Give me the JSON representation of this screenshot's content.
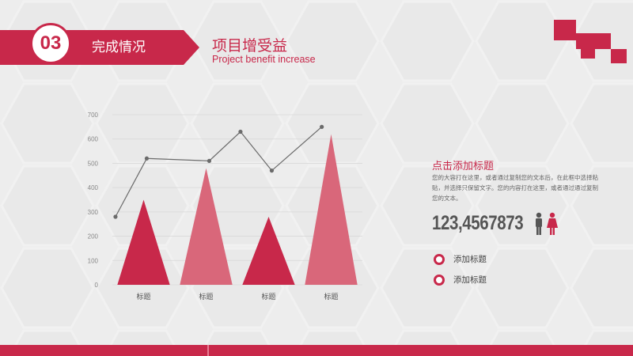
{
  "header": {
    "section_number": "03",
    "section_label": "完成情况",
    "title": "项目增受益",
    "subtitle": "Project benefit increase"
  },
  "colors": {
    "accent": "#c8284a",
    "accent_light": "#d9677a",
    "line": "#6b6b6b"
  },
  "chart_data": {
    "type": "bar",
    "bar_shape": "triangle",
    "categories": [
      "标题",
      "标题",
      "标题",
      "标题"
    ],
    "ylim": [
      0,
      700
    ],
    "yticks": [
      0,
      100,
      200,
      300,
      400,
      500,
      600,
      700
    ],
    "grid": true,
    "series": [
      {
        "values": [
          350,
          480,
          280,
          620
        ],
        "colors": [
          "#c8284a",
          "#d9677a",
          "#c8284a",
          "#d9677a"
        ]
      }
    ],
    "line": {
      "x_positions": [
        0,
        0.5,
        1.5,
        2.0,
        2.5,
        3.3
      ],
      "values": [
        280,
        520,
        510,
        630,
        470,
        650
      ]
    }
  },
  "panel": {
    "title": "点击添加标题",
    "body": "您的大容打在这里，或者通过复制您的文本后，在此框中选择粘贴，并选择只保留文字。您的内容打在这里，或者通过通过复制您的文本。",
    "big_number": "123,4567873",
    "options": [
      "添加标题",
      "添加标题"
    ]
  }
}
